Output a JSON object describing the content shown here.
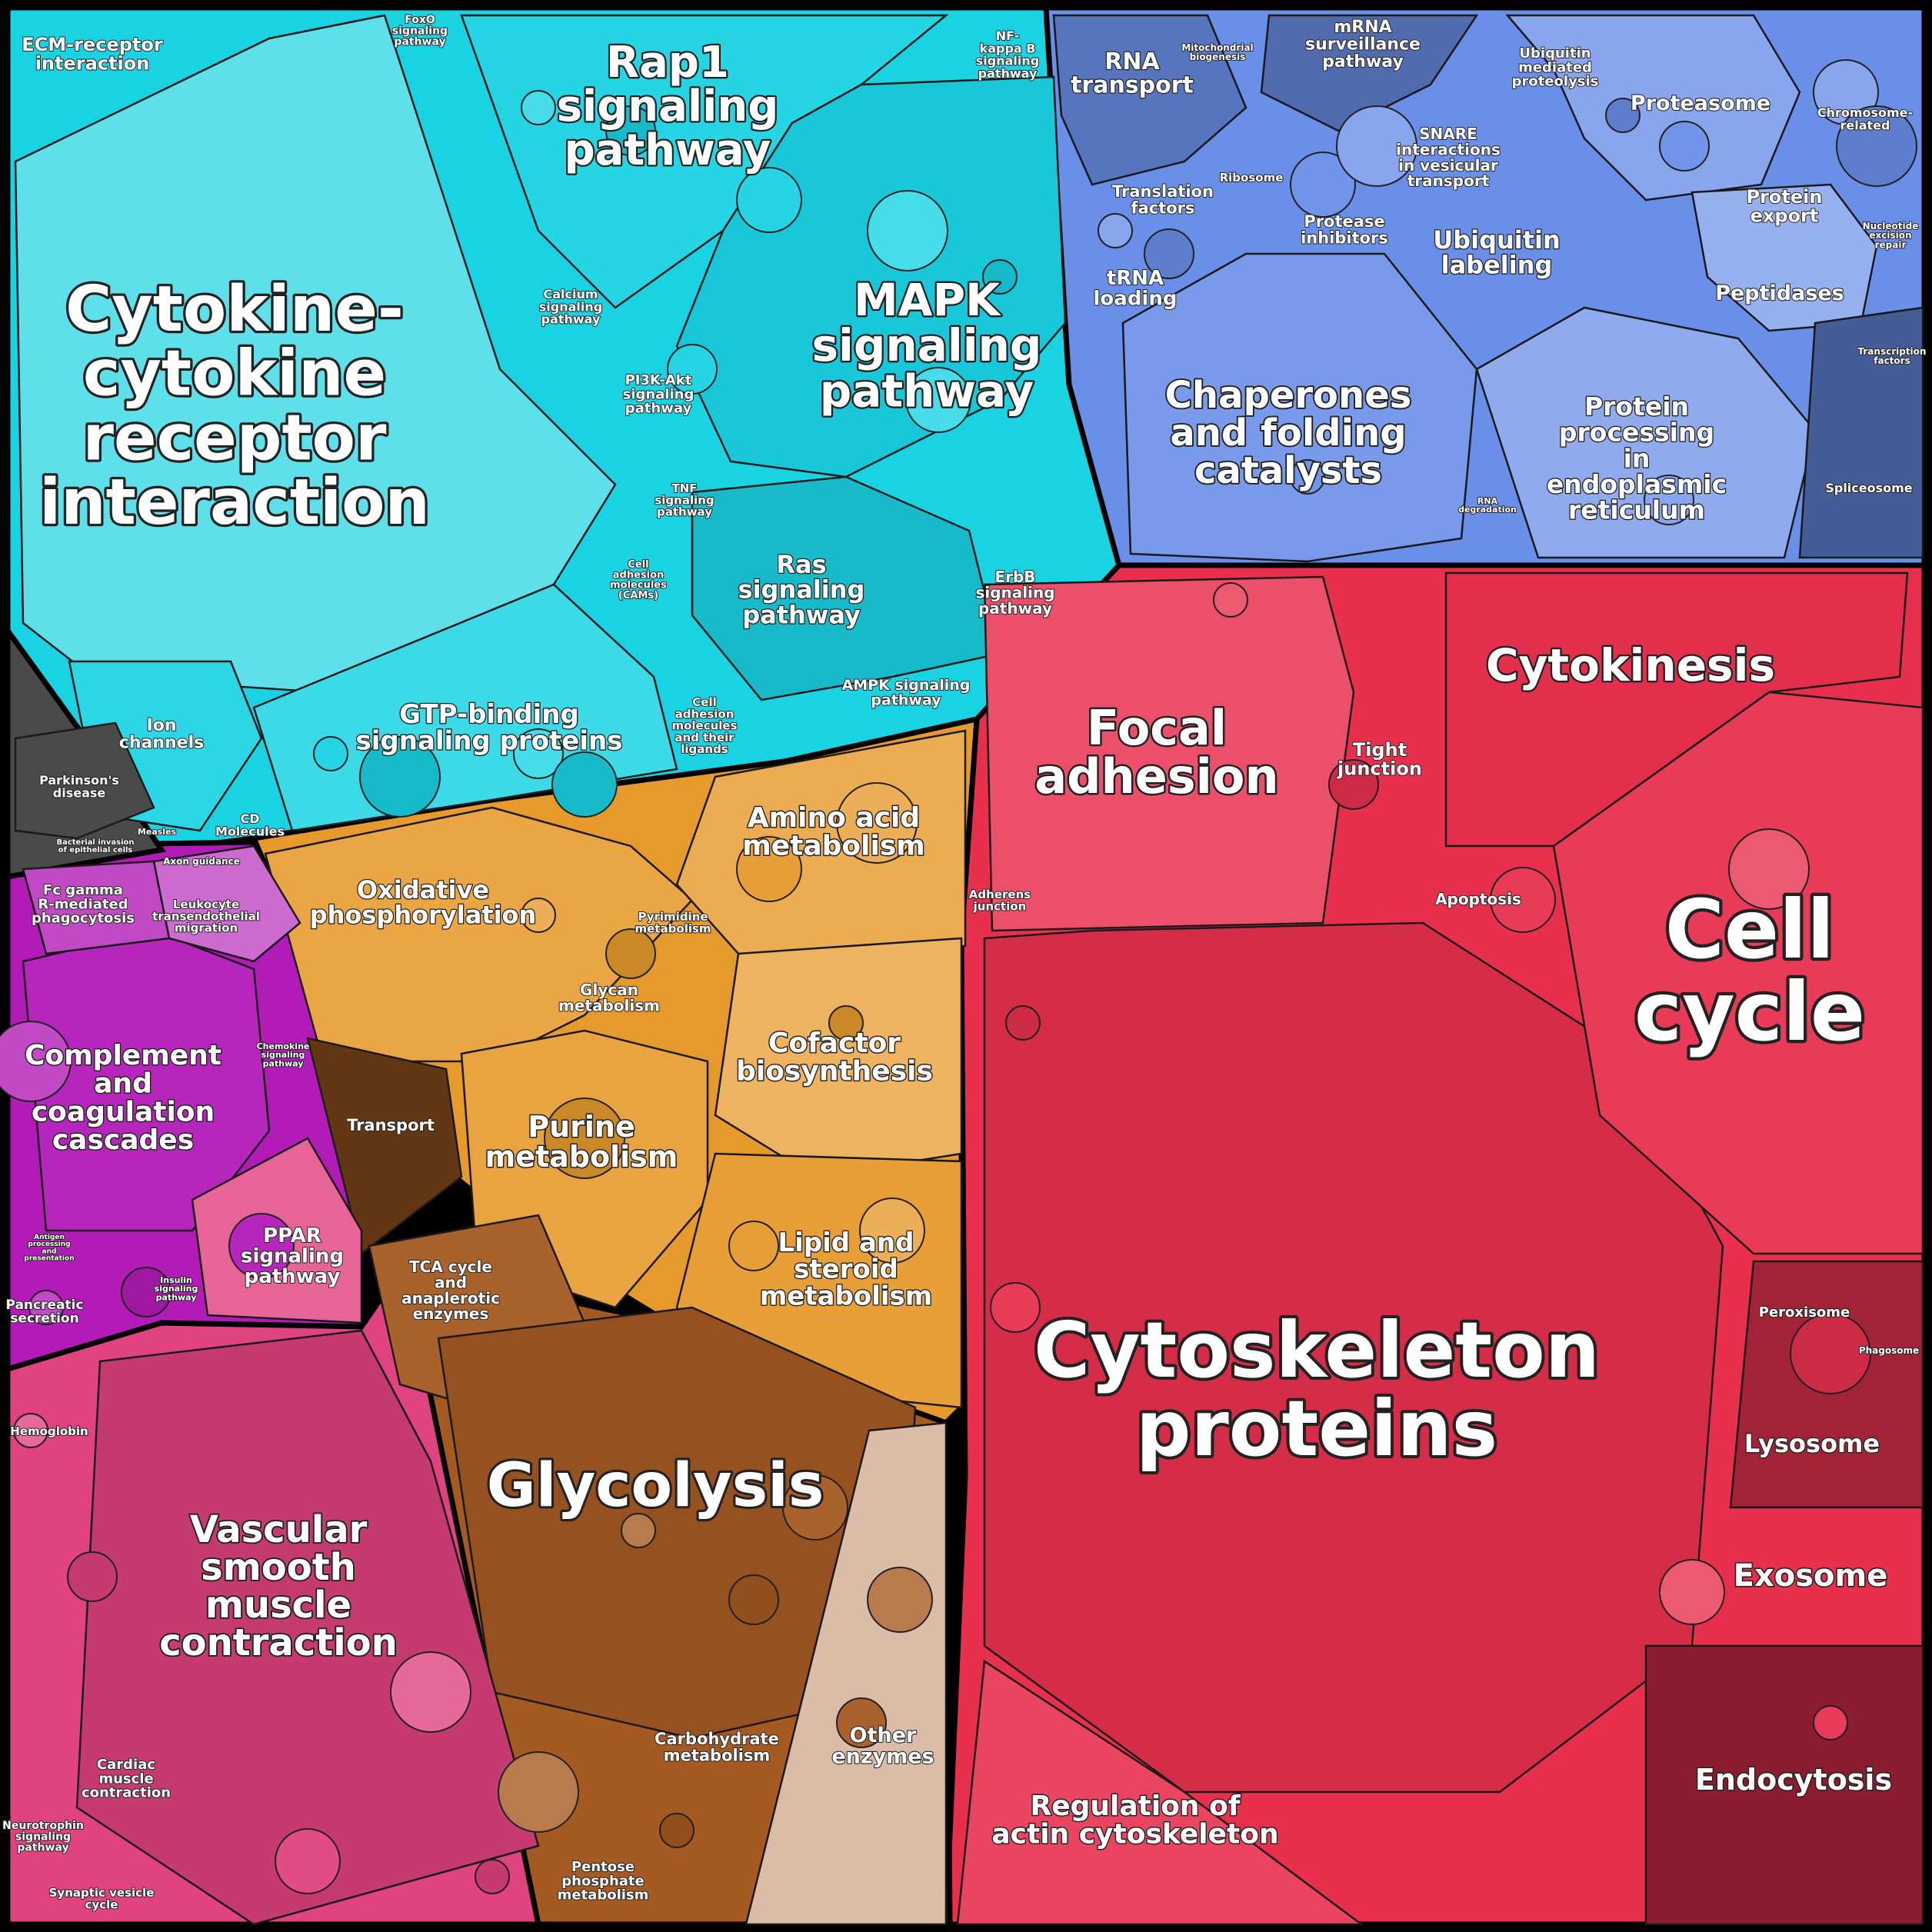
{
  "diagram": {
    "groups": [
      {
        "key": "cyan",
        "color": "#19d3e3"
      },
      {
        "key": "blue",
        "color": "#6a8fe8"
      },
      {
        "key": "red",
        "color": "#e8304e"
      },
      {
        "key": "orange",
        "color": "#e79a2c"
      },
      {
        "key": "brown",
        "color": "#a55a22"
      },
      {
        "key": "magenta",
        "color": "#b31bb8"
      },
      {
        "key": "pink",
        "color": "#e0437f"
      },
      {
        "key": "gray",
        "color": "#4a4a4a"
      }
    ],
    "labels": {
      "cytokine": [
        "Cytokine-",
        "cytokine",
        "receptor",
        "interaction"
      ],
      "rap1": [
        "Rap1",
        "signaling",
        "pathway"
      ],
      "mapk": [
        "MAPK",
        "signaling",
        "pathway"
      ],
      "ecm": [
        "ECM-receptor",
        "interaction"
      ],
      "gtp": [
        "GTP-binding",
        "signaling proteins"
      ],
      "ion": [
        "Ion",
        "channels"
      ],
      "ras": [
        "Ras",
        "signaling",
        "pathway"
      ],
      "erbb": [
        "ErbB",
        "signaling",
        "pathway"
      ],
      "ampk": [
        "AMPK signaling",
        "pathway"
      ],
      "pi3k": [
        "PI3K-Akt",
        "signaling",
        "pathway"
      ],
      "calcium": [
        "Calcium",
        "signaling",
        "pathway"
      ],
      "tnf": [
        "TNF",
        "signaling",
        "pathway"
      ],
      "cam": [
        "Cell",
        "adhesion",
        "molecules",
        "(CAMs)"
      ],
      "celladh": [
        "Cell",
        "adhesion",
        "molecules",
        "and their",
        "ligands"
      ],
      "nfkb": [
        "NF-",
        "kappa B",
        "signaling",
        "pathway"
      ],
      "foxo": [
        "FoxO",
        "signaling",
        "pathway"
      ],
      "cd": [
        "CD",
        "Molecules"
      ],
      "parkinson": [
        "Parkinson's",
        "disease"
      ],
      "rna": [
        "RNA",
        "transport"
      ],
      "mrna": [
        "mRNA",
        "surveillance",
        "pathway"
      ],
      "mito": [
        "Mitochondrial",
        "biogenesis"
      ],
      "translation": [
        "Translation",
        "factors"
      ],
      "trna": [
        "tRNA",
        "loading"
      ],
      "ribosome": [
        "Ribosome"
      ],
      "snare": [
        "SNARE",
        "interactions",
        "in vesicular",
        "transport"
      ],
      "ubimed": [
        "Ubiquitin",
        "mediated",
        "proteolysis"
      ],
      "proteasome": [
        "Proteasome"
      ],
      "chromosome": [
        "Chromosome-",
        "related"
      ],
      "protexport": [
        "Protein",
        "export"
      ],
      "nucleotide": [
        "Nucleotide",
        "excision",
        "repair"
      ],
      "peptidases": [
        "Peptidases"
      ],
      "transfac": [
        "Transcription",
        "factors"
      ],
      "protinhib": [
        "Protease",
        "inhibitors"
      ],
      "ubilab": [
        "Ubiquitin",
        "labeling"
      ],
      "chaperones": [
        "Chaperones",
        "and folding",
        "catalysts"
      ],
      "protproc": [
        "Protein",
        "processing",
        "in",
        "endoplasmic",
        "reticulum"
      ],
      "rnadeg": [
        "RNA",
        "degradation"
      ],
      "spliceosome": [
        "Spliceosome"
      ],
      "focal": [
        "Focal",
        "adhesion"
      ],
      "tight": [
        "Tight",
        "junction"
      ],
      "cytokinesis": [
        "Cytokinesis"
      ],
      "apoptosis": [
        "Apoptosis"
      ],
      "cellcycle": [
        "Cell",
        "cycle"
      ],
      "adherens": [
        "Adherens",
        "junction"
      ],
      "cytoskel": [
        "Cytoskeleton",
        "proteins"
      ],
      "regactin": [
        "Regulation of",
        "actin cytoskeleton"
      ],
      "peroxisome": [
        "Peroxisome"
      ],
      "phagosome": [
        "Phagosome"
      ],
      "lysosome": [
        "Lysosome"
      ],
      "exosome": [
        "Exosome"
      ],
      "endocytosis": [
        "Endocytosis"
      ],
      "oxphos": [
        "Oxidative",
        "phosphorylation"
      ],
      "amino": [
        "Amino acid",
        "metabolism"
      ],
      "pyrimidine": [
        "Pyrimidine",
        "metabolism"
      ],
      "glycan": [
        "Glycan",
        "metabolism"
      ],
      "cofactor": [
        "Cofactor",
        "biosynthesis"
      ],
      "transport": [
        "Transport"
      ],
      "purine": [
        "Purine",
        "metabolism"
      ],
      "lipid": [
        "Lipid and",
        "steroid",
        "metabolism"
      ],
      "tca": [
        "TCA cycle",
        "and",
        "anaplerotic",
        "enzymes"
      ],
      "glycolysis": [
        "Glycolysis"
      ],
      "carbo": [
        "Carbohydrate",
        "metabolism"
      ],
      "other": [
        "Other",
        "enzymes"
      ],
      "pentose": [
        "Pentose",
        "phosphate",
        "metabolism"
      ],
      "axon": [
        "Axon guidance"
      ],
      "fcgamma": [
        "Fc gamma",
        "R-mediated",
        "phagocytosis"
      ],
      "leukocyte": [
        "Leukocyte",
        "transendothelial",
        "migration"
      ],
      "complement": [
        "Complement",
        "and",
        "coagulation",
        "cascades"
      ],
      "chemokine": [
        "Chemokine",
        "signaling",
        "pathway"
      ],
      "ppar": [
        "PPAR",
        "signaling",
        "pathway"
      ],
      "insulin": [
        "Insulin",
        "signaling",
        "pathway"
      ],
      "pancreatic": [
        "Pancreatic",
        "secretion"
      ],
      "antigen": [
        "Antigen",
        "processing",
        "and",
        "presentation"
      ],
      "hemoglobin": [
        "Hemoglobin"
      ],
      "vascular": [
        "Vascular",
        "smooth",
        "muscle",
        "contraction"
      ],
      "cardiac": [
        "Cardiac",
        "muscle",
        "contraction"
      ],
      "neurotrophin": [
        "Neurotrophin",
        "signaling",
        "pathway"
      ],
      "synaptic": [
        "Synaptic vesicle",
        "cycle"
      ],
      "measles": [
        "Measles"
      ],
      "bacterial": [
        "Bacterial invasion",
        "of epithelial cells"
      ]
    }
  }
}
